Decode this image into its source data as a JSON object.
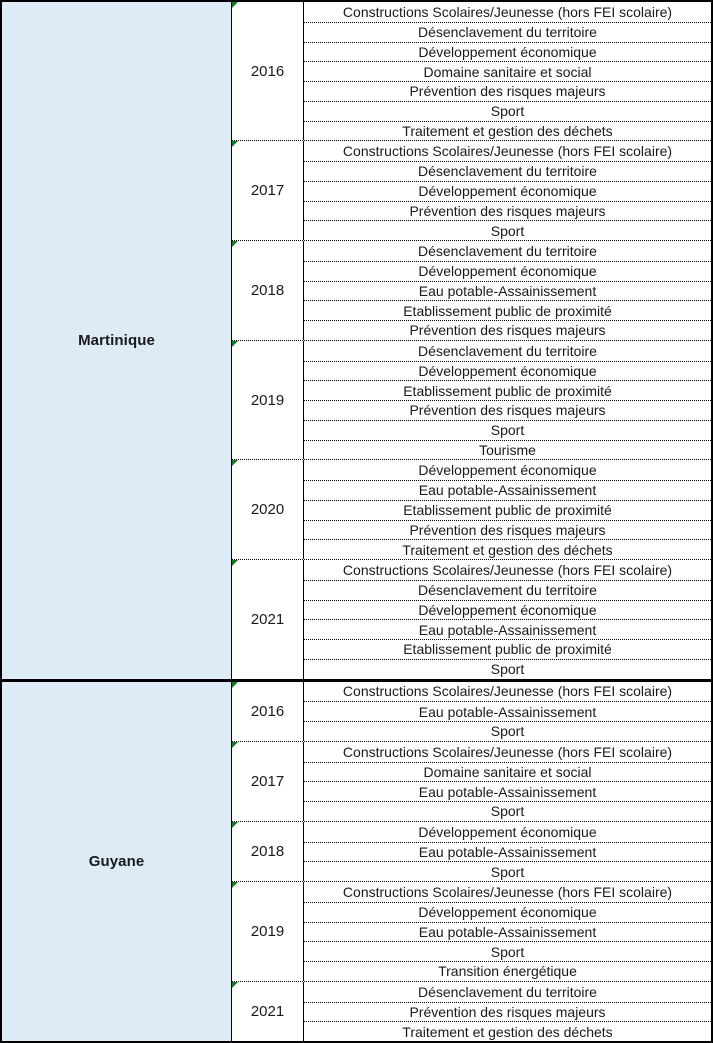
{
  "table": {
    "colors": {
      "region_fill": "#DDEBF7",
      "text": "#1A1A1A",
      "grid_border": "#000000",
      "error_indicator_green": "#0A7D20"
    },
    "icons": {
      "year_cell_corner": "error-indicator-triangle-icon"
    },
    "sections": [
      {
        "region": "Martinique",
        "groups": [
          {
            "year": "2016",
            "categories": [
              "Constructions Scolaires/Jeunesse (hors FEI scolaire)",
              "Désenclavement du territoire",
              "Développement économique",
              "Domaine sanitaire et social",
              "Prévention des risques majeurs",
              "Sport",
              "Traitement et gestion des déchets"
            ]
          },
          {
            "year": "2017",
            "categories": [
              "Constructions Scolaires/Jeunesse (hors FEI scolaire)",
              "Désenclavement du territoire",
              "Développement économique",
              "Prévention des risques majeurs",
              "Sport"
            ]
          },
          {
            "year": "2018",
            "categories": [
              "Désenclavement du territoire",
              "Développement économique",
              "Eau potable-Assainissement",
              "Etablissement public de proximité",
              "Prévention des risques majeurs"
            ]
          },
          {
            "year": "2019",
            "categories": [
              "Désenclavement du territoire",
              "Développement économique",
              "Etablissement public de proximité",
              "Prévention des risques majeurs",
              "Sport",
              "Tourisme"
            ]
          },
          {
            "year": "2020",
            "categories": [
              "Développement économique",
              "Eau potable-Assainissement",
              "Etablissement public de proximité",
              "Prévention des risques majeurs",
              "Traitement et gestion des déchets"
            ]
          },
          {
            "year": "2021",
            "categories": [
              "Constructions Scolaires/Jeunesse (hors FEI scolaire)",
              "Désenclavement du territoire",
              "Développement économique",
              "Eau potable-Assainissement",
              "Etablissement public de proximité",
              "Sport"
            ]
          }
        ]
      },
      {
        "region": "Guyane",
        "groups": [
          {
            "year": "2016",
            "categories": [
              "Constructions Scolaires/Jeunesse (hors FEI scolaire)",
              "Eau potable-Assainissement",
              "Sport"
            ]
          },
          {
            "year": "2017",
            "categories": [
              "Constructions Scolaires/Jeunesse (hors FEI scolaire)",
              "Domaine sanitaire et social",
              "Eau potable-Assainissement",
              "Sport"
            ]
          },
          {
            "year": "2018",
            "categories": [
              "Développement économique",
              "Eau potable-Assainissement",
              "Sport"
            ]
          },
          {
            "year": "2019",
            "categories": [
              "Constructions Scolaires/Jeunesse (hors FEI scolaire)",
              "Développement économique",
              "Eau potable-Assainissement",
              "Sport",
              "Transition énergétique"
            ]
          },
          {
            "year": "2021",
            "categories": [
              "Désenclavement du territoire",
              "Prévention des risques majeurs",
              "Traitement et gestion des déchets"
            ]
          }
        ]
      }
    ]
  }
}
